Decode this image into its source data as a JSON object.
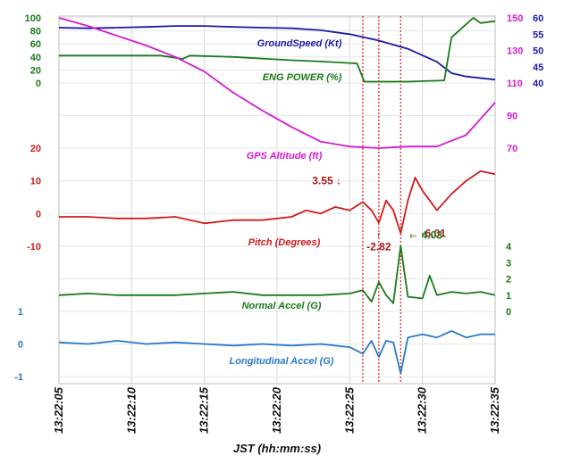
{
  "chart_data": {
    "type": "line",
    "xlabel": "JST (hh:mm:ss)",
    "x_ticks": [
      "13:22:05",
      "13:22:10",
      "13:22:15",
      "13:22:20",
      "13:22:25",
      "13:22:30",
      "13:22:35"
    ],
    "x_range_seconds": [
      0,
      30
    ],
    "grid": true,
    "event_markers_seconds": [
      20.9,
      22.0,
      23.5
    ],
    "axes": {
      "left_top": {
        "ticks": [
          "100",
          "80",
          "60",
          "40",
          "20",
          "0"
        ],
        "range": [
          0,
          100
        ],
        "color": "#1a7a1a"
      },
      "right_speed": {
        "ticks": [
          "60",
          "55",
          "50",
          "45",
          "40"
        ],
        "range": [
          40,
          60
        ],
        "color": "#1a1aa8"
      },
      "right_alt": {
        "ticks": [
          "150",
          "130",
          "110",
          "90",
          "70"
        ],
        "range": [
          70,
          150
        ],
        "color": "#d21ad2"
      },
      "left_pitch": {
        "ticks": [
          "20",
          "10",
          "0",
          "-10"
        ],
        "range": [
          -10,
          20
        ],
        "color": "#d21a1a"
      },
      "right_normal": {
        "ticks": [
          "4",
          "3",
          "2",
          "1",
          "0"
        ],
        "range": [
          0,
          4
        ],
        "color": "#1a7a1a"
      },
      "left_long": {
        "ticks": [
          "1",
          "0",
          "-1"
        ],
        "range": [
          -1,
          1
        ],
        "color": "#2a78c8"
      }
    },
    "series": [
      {
        "name": "GroundSpeed (Kt)",
        "color": "#1a1aa8",
        "axis": "right_speed",
        "x": [
          0,
          2,
          4,
          6,
          8,
          10,
          12,
          14,
          16,
          18,
          20,
          22,
          24,
          26,
          27,
          28,
          30
        ],
        "y": [
          57,
          56.8,
          57,
          57.2,
          57.5,
          57.5,
          57.2,
          57,
          56.8,
          56.2,
          55,
          53,
          50.5,
          46.5,
          43,
          42,
          41
        ]
      },
      {
        "name": "ENG POWER (%)",
        "color": "#1a7a1a",
        "axis": "left_top",
        "x": [
          0,
          4,
          7,
          8.5,
          9,
          12,
          16,
          18,
          20.5,
          21,
          24,
          26.5,
          27,
          28.5,
          29,
          30
        ],
        "y": [
          42,
          42,
          42,
          37,
          42,
          40,
          35,
          33,
          30,
          2,
          2,
          4,
          70,
          100,
          92,
          95
        ]
      },
      {
        "name": "GPS Altitude (ft)",
        "color": "#d21ad2",
        "axis": "right_alt",
        "x": [
          0,
          2,
          4,
          6,
          8,
          10,
          12,
          14,
          16,
          18,
          20,
          22,
          24,
          26,
          28,
          30
        ],
        "y": [
          150,
          145,
          139,
          133,
          126,
          117,
          104,
          93,
          83,
          74,
          71,
          70,
          71,
          71,
          78,
          98
        ]
      },
      {
        "name": "Pitch (Degrees)",
        "color": "#d21a1a",
        "axis": "left_pitch",
        "x": [
          0,
          2,
          4,
          6,
          8,
          10,
          12,
          14,
          16,
          17,
          18,
          19,
          20,
          20.9,
          21.5,
          22.0,
          22.5,
          23,
          23.5,
          24,
          24.5,
          25,
          26,
          27,
          28,
          29,
          30
        ],
        "y": [
          -1,
          -1,
          -1.5,
          -1.5,
          -1,
          -3,
          -2,
          -2,
          -1,
          1,
          0,
          2,
          1,
          3.55,
          1,
          -2.82,
          4,
          1,
          -6.01,
          4,
          11,
          7,
          1,
          6,
          10,
          13,
          12
        ]
      },
      {
        "name": "Normal Accel (G)",
        "color": "#1a7a1a",
        "axis": "right_normal",
        "x": [
          0,
          2,
          4,
          6,
          8,
          10,
          12,
          14,
          16,
          18,
          20,
          20.9,
          21.5,
          22.0,
          22.5,
          23,
          23.5,
          24,
          25,
          25.5,
          26,
          27,
          28,
          29,
          30
        ],
        "y": [
          1,
          1.1,
          1,
          1,
          1,
          1.1,
          1.2,
          1,
          1,
          1,
          1.1,
          1.3,
          0.6,
          1.8,
          1.0,
          0.5,
          4.03,
          0.9,
          0.8,
          2.2,
          1.0,
          1.2,
          1.1,
          1.2,
          1.0
        ]
      },
      {
        "name": "Longitudinal Accel (G)",
        "color": "#2a78c8",
        "axis": "left_long",
        "x": [
          0,
          2,
          4,
          6,
          8,
          10,
          12,
          14,
          16,
          18,
          20,
          20.9,
          21.5,
          22.0,
          22.5,
          23,
          23.5,
          24,
          25,
          26,
          27,
          28,
          29,
          30
        ],
        "y": [
          0.05,
          0.0,
          0.1,
          0.0,
          0.05,
          0.0,
          -0.05,
          0.0,
          -0.05,
          0.0,
          -0.1,
          -0.3,
          0.1,
          -0.4,
          0.1,
          0.05,
          -0.9,
          0.2,
          0.3,
          0.2,
          0.4,
          0.2,
          0.3,
          0.3
        ]
      }
    ],
    "annotations": [
      {
        "text": "3.55 ↓",
        "series": "Pitch (Degrees)",
        "x": 20.9,
        "y": 3.55,
        "color": "#a81a1a"
      },
      {
        "text": "↑\n-2.82",
        "series": "Pitch (Degrees)",
        "x": 22.0,
        "y": -2.82,
        "color": "#a81a1a"
      },
      {
        "text": "← -6.01",
        "series": "Pitch (Degrees)",
        "x": 23.5,
        "y": -6.01,
        "color": "#a81a1a"
      },
      {
        "text": "← 4.03",
        "series": "Normal Accel (G)",
        "x": 23.5,
        "y": 4.03,
        "color": "#1a7a1a"
      }
    ]
  }
}
